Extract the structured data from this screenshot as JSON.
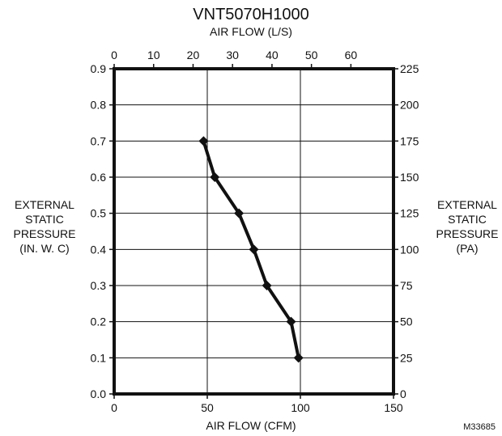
{
  "chart_data": {
    "type": "line",
    "title": "VNT5070H1000",
    "top_axis_label": "AIR FLOW (L/S)",
    "xlabel": "AIR FLOW (CFM)",
    "ylabel_left": [
      "EXTERNAL",
      "STATIC",
      "PRESSURE",
      "(IN. W. C)"
    ],
    "ylabel_right": [
      "EXTERNAL",
      "STATIC",
      "PRESSURE",
      "(PA)"
    ],
    "xlim": [
      0,
      150
    ],
    "ylim": [
      0,
      0.9
    ],
    "top_xlim": [
      0,
      70.8
    ],
    "right_ylim": [
      0,
      225
    ],
    "x_ticks": [
      "0",
      "50",
      "100",
      "150"
    ],
    "y_ticks": [
      "0.0",
      "0.1",
      "0.2",
      "0.3",
      "0.4",
      "0.5",
      "0.6",
      "0.7",
      "0.8",
      "0.9"
    ],
    "top_ticks": [
      "0",
      "10",
      "20",
      "30",
      "40",
      "50",
      "60"
    ],
    "right_ticks": [
      "0",
      "25",
      "50",
      "75",
      "100",
      "125",
      "150",
      "175",
      "200",
      "225"
    ],
    "grid": true,
    "series": [
      {
        "x": [
          48,
          54,
          67,
          75,
          82,
          95,
          99
        ],
        "y": [
          0.7,
          0.6,
          0.5,
          0.4,
          0.3,
          0.2,
          0.1
        ]
      }
    ],
    "figure_code": "M33685"
  }
}
